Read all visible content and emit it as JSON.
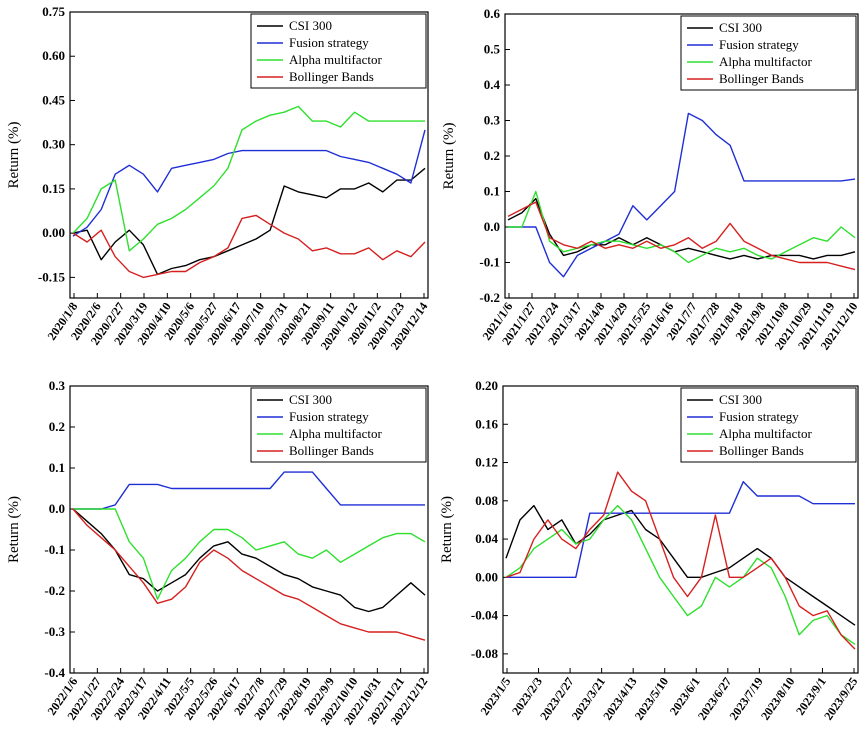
{
  "chart_data": [
    {
      "type": "line",
      "ylabel": "Return (%)",
      "ylim": [
        -0.22,
        0.75
      ],
      "yticks": [
        -0.15,
        0.0,
        0.15,
        0.3,
        0.45,
        0.6,
        0.75
      ],
      "ytick_labels": [
        "-0.15",
        "0.00",
        "0.15",
        "0.30",
        "0.45",
        "0.60",
        "0.75"
      ],
      "xlabels": [
        "2020/1/8",
        "2020/2/6",
        "2020/2/27",
        "2020/3/19",
        "2020/4/10",
        "2020/5/6",
        "2020/5/27",
        "2020/6/17",
        "2020/7/10",
        "2020/7/31",
        "2020/8/21",
        "2020/9/11",
        "2020/10/12",
        "2020/11/2",
        "2020/11/23",
        "2020/12/14"
      ],
      "legend": {
        "position": "top-right",
        "entries": [
          "CSI 300",
          "Fusion strategy",
          "Alpha multifactor",
          "Bollinger Bands"
        ]
      },
      "series": [
        {
          "name": "CSI 300",
          "color": "#000000",
          "values": [
            0.0,
            0.01,
            -0.09,
            -0.03,
            0.01,
            -0.04,
            -0.14,
            -0.12,
            -0.11,
            -0.09,
            -0.08,
            -0.06,
            -0.04,
            -0.02,
            0.01,
            0.16,
            0.14,
            0.13,
            0.12,
            0.15,
            0.15,
            0.17,
            0.14,
            0.18,
            0.18,
            0.22
          ]
        },
        {
          "name": "Fusion strategy",
          "color": "#1f2fd6",
          "values": [
            -0.01,
            0.02,
            0.08,
            0.2,
            0.23,
            0.2,
            0.14,
            0.22,
            0.23,
            0.24,
            0.25,
            0.27,
            0.28,
            0.28,
            0.28,
            0.28,
            0.28,
            0.28,
            0.28,
            0.26,
            0.25,
            0.24,
            0.22,
            0.2,
            0.17,
            0.35
          ]
        },
        {
          "name": "Alpha multifactor",
          "color": "#2ee02e",
          "values": [
            0.0,
            0.05,
            0.15,
            0.18,
            -0.06,
            -0.02,
            0.03,
            0.05,
            0.08,
            0.12,
            0.16,
            0.22,
            0.35,
            0.38,
            0.4,
            0.41,
            0.43,
            0.38,
            0.38,
            0.36,
            0.41,
            0.38,
            0.38,
            0.38,
            0.38,
            0.38
          ]
        },
        {
          "name": "Bollinger Bands",
          "color": "#d62020",
          "values": [
            0.0,
            -0.03,
            0.01,
            -0.08,
            -0.13,
            -0.15,
            -0.14,
            -0.13,
            -0.13,
            -0.1,
            -0.08,
            -0.05,
            0.05,
            0.06,
            0.03,
            0.0,
            -0.02,
            -0.06,
            -0.05,
            -0.07,
            -0.07,
            -0.05,
            -0.09,
            -0.06,
            -0.08,
            -0.03
          ]
        }
      ]
    },
    {
      "type": "line",
      "ylabel": "Return (%)",
      "ylim": [
        -0.2,
        0.6
      ],
      "yticks": [
        -0.2,
        -0.1,
        0.0,
        0.1,
        0.2,
        0.3,
        0.4,
        0.5,
        0.6
      ],
      "ytick_labels": [
        "-0.2",
        "-0.1",
        "0.0",
        "0.1",
        "0.2",
        "0.3",
        "0.4",
        "0.5",
        "0.6"
      ],
      "xlabels": [
        "2021/1/6",
        "2021/1/27",
        "2021/2/24",
        "2021/3/17",
        "2021/4/8",
        "2021/4/29",
        "2021/5/25",
        "2021/6/16",
        "2021/7/7",
        "2021/7/28",
        "2021/8/18",
        "2021/9/8",
        "2021/10/8",
        "2021/10/29",
        "2021/11/19",
        "2021/12/10"
      ],
      "legend": {
        "position": "top-right",
        "entries": [
          "CSI 300",
          "Fusion strategy",
          "Alpha multifactor",
          "Bollinger Bands"
        ]
      },
      "series": [
        {
          "name": "CSI 300",
          "color": "#000000",
          "values": [
            0.02,
            0.04,
            0.08,
            -0.02,
            -0.08,
            -0.07,
            -0.05,
            -0.05,
            -0.03,
            -0.05,
            -0.03,
            -0.05,
            -0.07,
            -0.06,
            -0.07,
            -0.08,
            -0.09,
            -0.08,
            -0.09,
            -0.08,
            -0.08,
            -0.08,
            -0.09,
            -0.08,
            -0.08,
            -0.07
          ]
        },
        {
          "name": "Fusion strategy",
          "color": "#1f2fd6",
          "values": [
            0.0,
            0.0,
            0.0,
            -0.1,
            -0.14,
            -0.08,
            -0.06,
            -0.04,
            -0.02,
            0.06,
            0.02,
            0.06,
            0.1,
            0.32,
            0.3,
            0.26,
            0.23,
            0.13,
            0.13,
            0.13,
            0.13,
            0.13,
            0.13,
            0.13,
            0.13,
            0.135
          ]
        },
        {
          "name": "Alpha multifactor",
          "color": "#2ee02e",
          "values": [
            0.0,
            0.0,
            0.1,
            -0.04,
            -0.07,
            -0.06,
            -0.05,
            -0.04,
            -0.04,
            -0.05,
            -0.06,
            -0.05,
            -0.07,
            -0.1,
            -0.08,
            -0.06,
            -0.07,
            -0.06,
            -0.08,
            -0.09,
            -0.07,
            -0.05,
            -0.03,
            -0.04,
            0.0,
            -0.03
          ]
        },
        {
          "name": "Bollinger Bands",
          "color": "#d62020",
          "values": [
            0.03,
            0.05,
            0.07,
            -0.03,
            -0.05,
            -0.06,
            -0.04,
            -0.06,
            -0.05,
            -0.06,
            -0.04,
            -0.06,
            -0.05,
            -0.03,
            -0.06,
            -0.04,
            0.01,
            -0.04,
            -0.06,
            -0.08,
            -0.09,
            -0.1,
            -0.1,
            -0.1,
            -0.11,
            -0.12
          ]
        }
      ]
    },
    {
      "type": "line",
      "ylabel": "Return (%)",
      "ylim": [
        -0.4,
        0.3
      ],
      "yticks": [
        -0.4,
        -0.3,
        -0.2,
        -0.1,
        0.0,
        0.1,
        0.2,
        0.3
      ],
      "ytick_labels": [
        "-0.4",
        "-0.3",
        "-0.2",
        "-0.1",
        "0.0",
        "0.1",
        "0.2",
        "0.3"
      ],
      "xlabels": [
        "2022/1/6",
        "2022/1/27",
        "2022/2/24",
        "2022/3/17",
        "2022/4/11",
        "2022/5/5",
        "2022/5/26",
        "2022/6/17",
        "2022/7/8",
        "2022/7/29",
        "2022/8/19",
        "2022/9/9",
        "2022/10/10",
        "2022/10/31",
        "2022/11/21",
        "2022/12/12"
      ],
      "legend": {
        "position": "top-right",
        "entries": [
          "CSI 300",
          "Fusion strategy",
          "Alpha multifactor",
          "Bollinger Bands"
        ]
      },
      "series": [
        {
          "name": "CSI 300",
          "color": "#000000",
          "values": [
            0.0,
            -0.03,
            -0.06,
            -0.1,
            -0.16,
            -0.17,
            -0.2,
            -0.18,
            -0.16,
            -0.12,
            -0.09,
            -0.08,
            -0.11,
            -0.12,
            -0.14,
            -0.16,
            -0.17,
            -0.19,
            -0.2,
            -0.21,
            -0.24,
            -0.25,
            -0.24,
            -0.21,
            -0.18,
            -0.21
          ]
        },
        {
          "name": "Fusion strategy",
          "color": "#1f2fd6",
          "values": [
            0.0,
            0.0,
            0.0,
            0.01,
            0.06,
            0.06,
            0.06,
            0.05,
            0.05,
            0.05,
            0.05,
            0.05,
            0.05,
            0.05,
            0.05,
            0.09,
            0.09,
            0.09,
            0.05,
            0.01,
            0.01,
            0.01,
            0.01,
            0.01,
            0.01,
            0.01
          ]
        },
        {
          "name": "Alpha multifactor",
          "color": "#2ee02e",
          "values": [
            0.0,
            0.0,
            0.0,
            0.0,
            -0.08,
            -0.12,
            -0.22,
            -0.15,
            -0.12,
            -0.08,
            -0.05,
            -0.05,
            -0.07,
            -0.1,
            -0.09,
            -0.08,
            -0.11,
            -0.12,
            -0.1,
            -0.13,
            -0.11,
            -0.09,
            -0.07,
            -0.06,
            -0.06,
            -0.08
          ]
        },
        {
          "name": "Bollinger Bands",
          "color": "#d62020",
          "values": [
            0.0,
            -0.04,
            -0.07,
            -0.1,
            -0.14,
            -0.18,
            -0.23,
            -0.22,
            -0.19,
            -0.13,
            -0.1,
            -0.12,
            -0.15,
            -0.17,
            -0.19,
            -0.21,
            -0.22,
            -0.24,
            -0.26,
            -0.28,
            -0.29,
            -0.3,
            -0.3,
            -0.3,
            -0.31,
            -0.32
          ]
        }
      ]
    },
    {
      "type": "line",
      "ylabel": "Return (%)",
      "ylim": [
        -0.1,
        0.2
      ],
      "yticks": [
        -0.08,
        -0.04,
        0.0,
        0.04,
        0.08,
        0.12,
        0.16,
        0.2
      ],
      "ytick_labels": [
        "-0.08",
        "-0.04",
        "0.00",
        "0.04",
        "0.08",
        "0.12",
        "0.16",
        "0.20"
      ],
      "xlabels": [
        "2023/1/5",
        "2023/2/3",
        "2023/2/27",
        "2023/3/21",
        "2023/4/13",
        "2023/5/10",
        "2023/6/1",
        "2023/6/27",
        "2023/7/19",
        "2023/8/10",
        "2023/9/1",
        "2023/9/25"
      ],
      "legend": {
        "position": "top-right",
        "entries": [
          "CSI 300",
          "Fusion strategy",
          "Alpha multifactor",
          "Bollinger Bands"
        ]
      },
      "series": [
        {
          "name": "CSI 300",
          "color": "#000000",
          "values": [
            0.02,
            0.06,
            0.075,
            0.05,
            0.06,
            0.035,
            0.045,
            0.06,
            0.065,
            0.07,
            0.05,
            0.04,
            0.02,
            0.0,
            0.0,
            0.005,
            0.01,
            0.02,
            0.03,
            0.02,
            0.0,
            -0.01,
            -0.02,
            -0.03,
            -0.04,
            -0.05
          ]
        },
        {
          "name": "Fusion strategy",
          "color": "#1f2fd6",
          "values": [
            0.0,
            0.0,
            0.0,
            0.0,
            0.0,
            0.0,
            0.067,
            0.067,
            0.067,
            0.067,
            0.067,
            0.067,
            0.067,
            0.067,
            0.067,
            0.067,
            0.067,
            0.1,
            0.085,
            0.085,
            0.085,
            0.085,
            0.077,
            0.077,
            0.077,
            0.077
          ]
        },
        {
          "name": "Alpha multifactor",
          "color": "#2ee02e",
          "values": [
            0.0,
            0.01,
            0.03,
            0.04,
            0.05,
            0.035,
            0.04,
            0.06,
            0.075,
            0.06,
            0.03,
            0.0,
            -0.02,
            -0.04,
            -0.03,
            0.0,
            -0.01,
            0.0,
            0.02,
            0.01,
            -0.02,
            -0.06,
            -0.045,
            -0.04,
            -0.06,
            -0.07
          ]
        },
        {
          "name": "Bollinger Bands",
          "color": "#d62020",
          "values": [
            0.0,
            0.005,
            0.04,
            0.06,
            0.04,
            0.03,
            0.05,
            0.065,
            0.11,
            0.09,
            0.08,
            0.04,
            0.0,
            -0.02,
            0.0,
            0.065,
            0.0,
            0.0,
            0.01,
            0.02,
            0.0,
            -0.03,
            -0.04,
            -0.035,
            -0.06,
            -0.075
          ]
        }
      ]
    }
  ]
}
